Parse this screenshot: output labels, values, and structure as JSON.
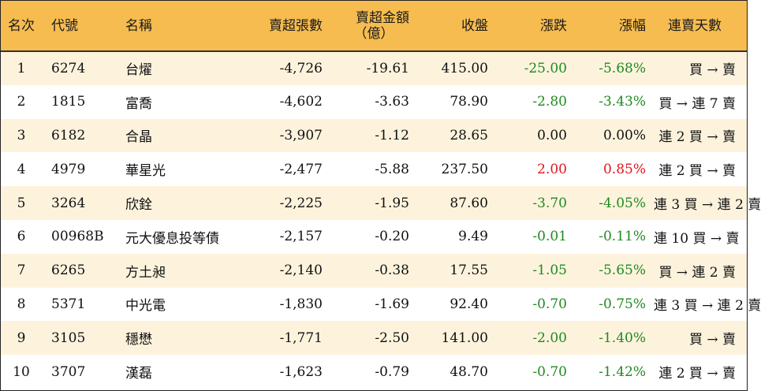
{
  "colors": {
    "header_bg": "#f7bc4f",
    "row_alt_bg": "#fdf3dd",
    "down": "#1f8a1f",
    "up": "#e0141e"
  },
  "headers": {
    "rank": "名次",
    "code": "代號",
    "name": "名稱",
    "sell_qty": "賣超張數",
    "sell_amt_line1": "賣超金額",
    "sell_amt_line2": "（億）",
    "close": "收盤",
    "change": "漲跌",
    "pct": "漲幅",
    "days": "連賣天數"
  },
  "rows": [
    {
      "rank": "1",
      "code": "6274",
      "name": "台燿",
      "sell_qty": "-4,726",
      "sell_amt": "-19.61",
      "close": "415.00",
      "change": "-25.00",
      "pct": "-5.68%",
      "days": "買 → 賣",
      "trend": "down"
    },
    {
      "rank": "2",
      "code": "1815",
      "name": "富喬",
      "sell_qty": "-4,602",
      "sell_amt": "-3.63",
      "close": "78.90",
      "change": "-2.80",
      "pct": "-3.43%",
      "days": "買 → 連 7 賣",
      "trend": "down"
    },
    {
      "rank": "3",
      "code": "6182",
      "name": "合晶",
      "sell_qty": "-3,907",
      "sell_amt": "-1.12",
      "close": "28.65",
      "change": "0.00",
      "pct": "0.00%",
      "days": "連 2 買 → 賣",
      "trend": "flat"
    },
    {
      "rank": "4",
      "code": "4979",
      "name": "華星光",
      "sell_qty": "-2,477",
      "sell_amt": "-5.88",
      "close": "237.50",
      "change": "2.00",
      "pct": "0.85%",
      "days": "連 2 買 → 賣",
      "trend": "up"
    },
    {
      "rank": "5",
      "code": "3264",
      "name": "欣銓",
      "sell_qty": "-2,225",
      "sell_amt": "-1.95",
      "close": "87.60",
      "change": "-3.70",
      "pct": "-4.05%",
      "days": "連 3 買 → 連 2 賣",
      "trend": "down"
    },
    {
      "rank": "6",
      "code": "00968B",
      "name": "元大優息投等債",
      "sell_qty": "-2,157",
      "sell_amt": "-0.20",
      "close": "9.49",
      "change": "-0.01",
      "pct": "-0.11%",
      "days": "連 10 買 → 賣",
      "trend": "down"
    },
    {
      "rank": "7",
      "code": "6265",
      "name": "方土昶",
      "sell_qty": "-2,140",
      "sell_amt": "-0.38",
      "close": "17.55",
      "change": "-1.05",
      "pct": "-5.65%",
      "days": "買 → 連 2 賣",
      "trend": "down"
    },
    {
      "rank": "8",
      "code": "5371",
      "name": "中光電",
      "sell_qty": "-1,830",
      "sell_amt": "-1.69",
      "close": "92.40",
      "change": "-0.70",
      "pct": "-0.75%",
      "days": "連 3 買 → 連 2 賣",
      "trend": "down"
    },
    {
      "rank": "9",
      "code": "3105",
      "name": "穩懋",
      "sell_qty": "-1,771",
      "sell_amt": "-2.50",
      "close": "141.00",
      "change": "-2.00",
      "pct": "-1.40%",
      "days": "買 → 賣",
      "trend": "down"
    },
    {
      "rank": "10",
      "code": "3707",
      "name": "漢磊",
      "sell_qty": "-1,623",
      "sell_amt": "-0.79",
      "close": "48.70",
      "change": "-0.70",
      "pct": "-1.42%",
      "days": "連 2 買 → 賣",
      "trend": "down"
    }
  ]
}
